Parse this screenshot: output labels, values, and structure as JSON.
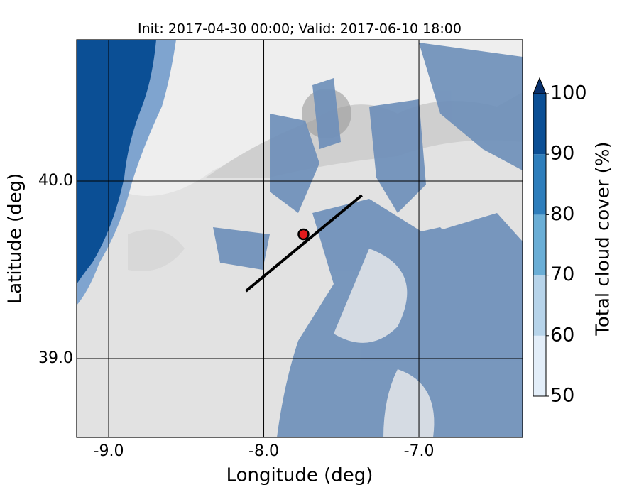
{
  "chart_data": {
    "type": "map",
    "title": "Init: 2017-04-30 00:00; Valid: 2017-06-10 18:00",
    "x_label": "Longitude (deg)",
    "y_label": "Latitude (deg)",
    "xlim": [
      -9.206,
      -6.332
    ],
    "ylim": [
      38.556,
      40.796
    ],
    "xticks": [
      {
        "value": -9,
        "label": "-9.0"
      },
      {
        "value": -8,
        "label": "-8.0"
      },
      {
        "value": -7,
        "label": "-7.0"
      }
    ],
    "yticks": [
      {
        "value": 39,
        "label": "39.0"
      },
      {
        "value": 40,
        "label": "40.0"
      }
    ],
    "grid": true,
    "point": {
      "lon": -7.744,
      "lat": 39.7,
      "color": "#e31a1c"
    },
    "transect": {
      "lon": [
        -8.115,
        -7.368
      ],
      "lat": [
        39.38,
        39.92
      ],
      "color": "#000000"
    },
    "colorbar": {
      "label": "Total cloud cover (%)",
      "levels": [
        50,
        60,
        70,
        80,
        90,
        100
      ],
      "colors": [
        "#e3eef9",
        "#b7d4ea",
        "#6aaed6",
        "#2e7ebc",
        "#0b4f95"
      ],
      "extend_color": "#08306b"
    }
  }
}
